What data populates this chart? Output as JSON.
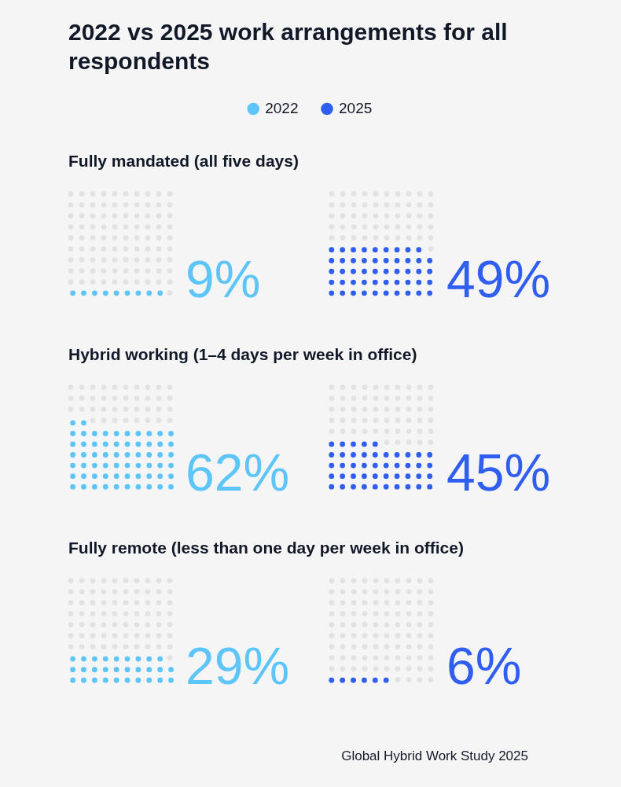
{
  "chart_data": [
    {
      "type": "other",
      "title": "2022 vs 2025 work arrangements for all respondents",
      "legend": "top",
      "categories": [
        "Fully mandated (all five days)"
      ],
      "series": [
        {
          "name": "2022",
          "color": "#5ec5f8",
          "values": [
            9
          ],
          "value_labels": [
            "9%"
          ]
        },
        {
          "name": "2025",
          "color": "#2f5ef0",
          "values": [
            49
          ],
          "value_labels": [
            "49%"
          ]
        }
      ]
    },
    {
      "type": "other",
      "categories": [
        "Hybrid working (1–4 days per week in office)"
      ],
      "series": [
        {
          "color": "#5ec5f8",
          "values": [
            62
          ],
          "value_labels": [
            "62%"
          ]
        },
        {
          "color": "#2f5ef0",
          "values": [
            45
          ],
          "value_labels": [
            "45%"
          ]
        }
      ]
    },
    {
      "type": "other",
      "categories": [
        "Fully remote (less than one day per week in office)"
      ],
      "series": [
        {
          "color": "#5ec5f8",
          "values": [
            29
          ],
          "value_labels": [
            "29%"
          ]
        },
        {
          "color": "#2f5ef0",
          "values": [
            6
          ],
          "value_labels": [
            "6%"
          ]
        }
      ],
      "annotations": [
        "Global Hybrid Work Study 2025"
      ]
    }
  ]
}
